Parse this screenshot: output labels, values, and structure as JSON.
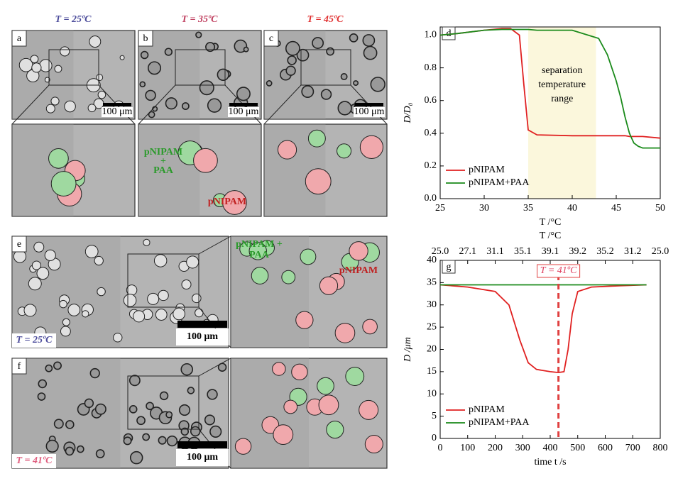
{
  "micrographs": {
    "column_titles": [
      "T = 25ºC",
      "T = 35ºC",
      "T = 45ºC"
    ],
    "panel_letters": [
      "a",
      "b",
      "c",
      "e",
      "f"
    ],
    "scale_bars": [
      "100 μm",
      "100 μm",
      "100 μm",
      "100 μm",
      "100 μm"
    ],
    "labels_b": {
      "mixed": [
        "pNIPAM",
        "+",
        "PAA"
      ],
      "single": "pNIPAM"
    },
    "labels_e": {
      "mixed": [
        "pNIPAM +",
        "PAA"
      ],
      "single": "pNIPAM"
    },
    "corner_temps": [
      "T = 25ºC",
      "T = 41ºC"
    ]
  },
  "chart_data": [
    {
      "type": "line",
      "panel": "d",
      "xlabel": "T /°C",
      "ylabel": "D/D₀",
      "x": [
        25,
        27,
        30,
        32,
        33,
        34,
        34.5,
        35,
        36,
        40,
        43,
        44,
        45,
        45.5,
        46,
        46.5,
        47,
        47.5,
        48,
        50
      ],
      "series": [
        {
          "name": "pNIPAM",
          "color": "#e02020",
          "values": [
            1.0,
            1.01,
            1.03,
            1.04,
            1.04,
            1.0,
            0.7,
            0.42,
            0.39,
            0.385,
            0.385,
            0.385,
            0.385,
            0.385,
            0.385,
            0.38,
            0.38,
            0.38,
            0.38,
            0.37
          ]
        },
        {
          "name": "pNIPAM+PAA",
          "color": "#1a8a1a",
          "values": [
            1.0,
            1.01,
            1.03,
            1.035,
            1.035,
            1.035,
            1.035,
            1.035,
            1.03,
            1.03,
            0.98,
            0.88,
            0.72,
            0.62,
            0.5,
            0.4,
            0.34,
            0.32,
            0.31,
            0.31
          ]
        }
      ],
      "xlim": [
        25,
        50
      ],
      "xticks": [
        25,
        30,
        35,
        40,
        45,
        50
      ],
      "ylim": [
        0,
        1.05
      ],
      "yticks": [
        {
          "value": 0,
          "label": "0.0"
        },
        {
          "value": 0.2,
          "label": "0.2"
        },
        {
          "value": 0.4,
          "label": "0.4"
        },
        {
          "value": 0.6,
          "label": "0.6"
        },
        {
          "value": 0.8,
          "label": "0.8"
        },
        {
          "value": 1.0,
          "label": "1.0"
        }
      ],
      "shaded_span": [
        35,
        42.7
      ],
      "shaded_label": [
        "separation",
        "temperature",
        "range"
      ],
      "legend": "lower left"
    },
    {
      "type": "line",
      "panel": "g",
      "xlabel": "time t /s",
      "ylabel": "D /μm",
      "top_label": "T /°C",
      "x": [
        0,
        100,
        200,
        250,
        290,
        320,
        350,
        400,
        430,
        450,
        465,
        480,
        500,
        550,
        650,
        750
      ],
      "series": [
        {
          "name": "pNIPAM",
          "color": "#e02020",
          "values": [
            34.5,
            34,
            33,
            30,
            22,
            17,
            15.5,
            15,
            14.8,
            15,
            20,
            28,
            33,
            34,
            34.3,
            34.5
          ]
        },
        {
          "name": "pNIPAM+PAA",
          "color": "#1a8a1a",
          "values": [
            34.5,
            34.5,
            34.5,
            34.5,
            34.5,
            34.5,
            34.5,
            34.5,
            34.5,
            34.5,
            34.5,
            34.5,
            34.5,
            34.5,
            34.5,
            34.5
          ]
        }
      ],
      "xlim": [
        0,
        800
      ],
      "xticks": [
        0,
        100,
        200,
        300,
        400,
        500,
        600,
        700,
        800
      ],
      "ylim": [
        0,
        40
      ],
      "yticks": [
        0,
        5,
        10,
        15,
        20,
        25,
        30,
        35,
        40
      ],
      "top_ticks": [
        {
          "value": 0,
          "label": "25.0"
        },
        {
          "value": 100,
          "label": "27.1"
        },
        {
          "value": 200,
          "label": "31.1"
        },
        {
          "value": 300,
          "label": "35.1"
        },
        {
          "value": 400,
          "label": "39.1"
        },
        {
          "value": 500,
          "label": "39.2"
        },
        {
          "value": 600,
          "label": "35.2"
        },
        {
          "value": 700,
          "label": "31.2"
        },
        {
          "value": 800,
          "label": "25.0"
        }
      ],
      "vline": 430,
      "vline_label": "T = 41ºC",
      "legend": "lower left"
    }
  ]
}
